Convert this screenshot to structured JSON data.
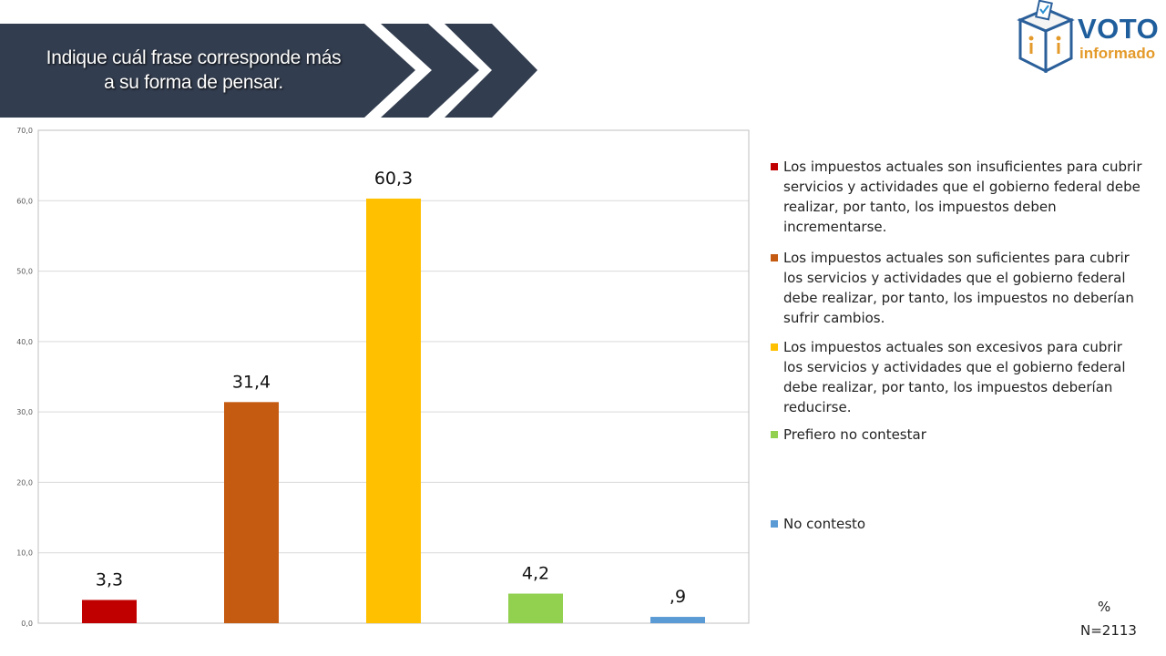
{
  "header": {
    "title_line1": "Indique cuál frase corresponde más",
    "title_line2": "a su forma de pensar."
  },
  "logo": {
    "word1": "VOTO",
    "word2": "informado"
  },
  "colors": {
    "banner": "#323d4f",
    "series": [
      "#c00000",
      "#c55a11",
      "#ffc000",
      "#92d050",
      "#5b9bd5"
    ]
  },
  "chart_data": {
    "type": "bar",
    "ylim": [
      0,
      70
    ],
    "yticks": [
      0,
      10,
      20,
      30,
      40,
      50,
      60,
      70
    ],
    "ytick_labels": [
      "0,0",
      "10,0",
      "20,0",
      "30,0",
      "40,0",
      "50,0",
      "60,0",
      "70,0"
    ],
    "grid": true,
    "legend_position": "right",
    "series": [
      {
        "name": "Los impuestos actuales son insuficientes para cubrir servicios y actividades que el gobierno federal debe realizar, por tanto, los impuestos deben incrementarse.",
        "value": 3.3,
        "label": "3,3"
      },
      {
        "name": "Los impuestos actuales son suficientes para cubrir los servicios y actividades que el gobierno federal debe realizar, por tanto, los impuestos no deberían sufrir cambios.",
        "value": 31.4,
        "label": "31,4"
      },
      {
        "name": "Los impuestos actuales son excesivos para cubrir los servicios y actividades que el gobierno federal debe realizar, por tanto, los impuestos deberían reducirse.",
        "value": 60.3,
        "label": "60,3"
      },
      {
        "name": "Prefiero no contestar",
        "value": 4.2,
        "label": "4,2"
      },
      {
        "name": "No contesto",
        "value": 0.9,
        "label": ",9"
      }
    ]
  },
  "footer": {
    "unit": "%",
    "sample": "N=2113"
  }
}
